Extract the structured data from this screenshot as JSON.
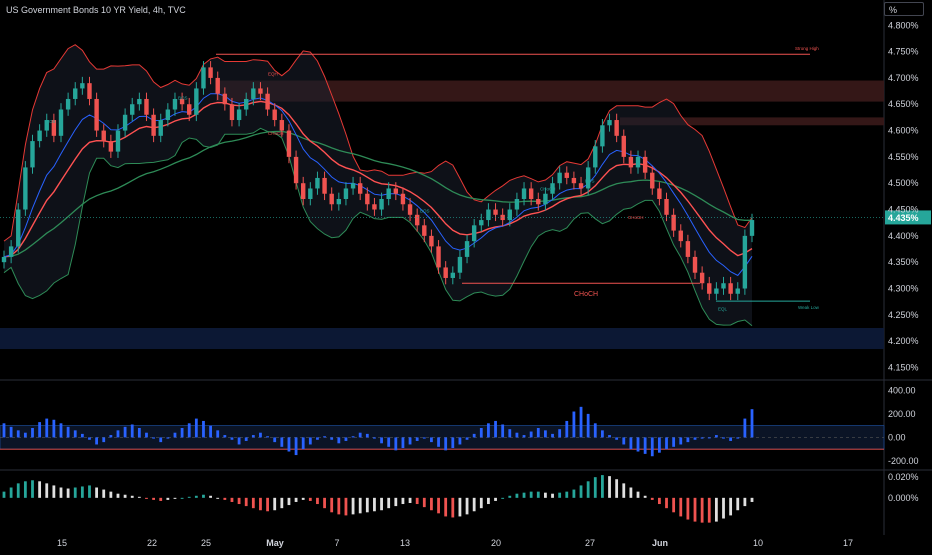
{
  "header": {
    "title": "US Government Bonds 10 YR Yield, 4h, TVC",
    "unit_button": "%"
  },
  "colors": {
    "background": "#000000",
    "up": "#26a69a",
    "down": "#ef5350",
    "band": "#e53935",
    "ema_fast": "#ff5252",
    "ema_mid": "#2962ff",
    "ema_slow": "#2e8b57",
    "demand_zone": "#0d1b3a",
    "supply_zone": "#3a1a1a",
    "hist_blue": "#2962ff",
    "hist_green": "#26a69a",
    "hist_red": "#ef5350",
    "hist_white": "#e0e0e0"
  },
  "annotations": {
    "strong_high": "Strong High",
    "weak_low": "Weak Low",
    "choch_main": "CHoCH",
    "eqh": "EQH",
    "eql": "EQL",
    "bos": "BOS",
    "choch": "CHoCH"
  },
  "chart_data": [
    {
      "type": "line",
      "title": "US Government Bonds 10 YR Yield, 4h, TVC",
      "ylabel": "%",
      "ylim": [
        4.13,
        4.81
      ],
      "y_ticks": [
        "4.800%",
        "4.750%",
        "4.700%",
        "4.650%",
        "4.600%",
        "4.550%",
        "4.500%",
        "4.450%",
        "4.400%",
        "4.350%",
        "4.300%",
        "4.250%",
        "4.200%",
        "4.150%"
      ],
      "y_tick_values": [
        4.8,
        4.75,
        4.7,
        4.65,
        4.6,
        4.55,
        4.5,
        4.45,
        4.4,
        4.35,
        4.3,
        4.25,
        4.2,
        4.15
      ],
      "last_price_label": "4.435%",
      "last_price": 4.435,
      "x_ticks": [
        "15",
        "22",
        "25",
        "May",
        "7",
        "13",
        "20",
        "27",
        "Jun",
        "10",
        "17"
      ],
      "series": [
        {
          "values": [
            4.36,
            4.38,
            4.45,
            4.53,
            4.58,
            4.6,
            4.62,
            4.59,
            4.64,
            4.66,
            4.68,
            4.69,
            4.66,
            4.6,
            4.58,
            4.56,
            4.6,
            4.63,
            4.65,
            4.66,
            4.63,
            4.59,
            4.62,
            4.64,
            4.66,
            4.65,
            4.63,
            4.68,
            4.72,
            4.7,
            4.67,
            4.65,
            4.62,
            4.64,
            4.66,
            4.68,
            4.67,
            4.64,
            4.62,
            4.6,
            4.55,
            4.5,
            4.47,
            4.49,
            4.51,
            4.48,
            4.46,
            4.47,
            4.49,
            4.5,
            4.48,
            4.46,
            4.45,
            4.47,
            4.49,
            4.48,
            4.46,
            4.44,
            4.42,
            4.4,
            4.38,
            4.34,
            4.32,
            4.33,
            4.36,
            4.39,
            4.42,
            4.43,
            4.45,
            4.44,
            4.43,
            4.45,
            4.47,
            4.49,
            4.47,
            4.46,
            4.48,
            4.5,
            4.52,
            4.51,
            4.5,
            4.49,
            4.53,
            4.57,
            4.61,
            4.62,
            4.59,
            4.55,
            4.53,
            4.55,
            4.52,
            4.49,
            4.47,
            4.44,
            4.41,
            4.39,
            4.36,
            4.33,
            4.31,
            4.29,
            4.3,
            4.31,
            4.29,
            4.3,
            4.4,
            4.43
          ]
        }
      ]
    },
    {
      "type": "bar",
      "title": "",
      "y_ticks": [
        "400.00",
        "200.00",
        "0.00",
        "-200.00"
      ],
      "y_tick_values": [
        400,
        200,
        0,
        -200
      ],
      "ylim": [
        -260,
        420
      ],
      "series": [
        {
          "values": [
            120,
            90,
            60,
            40,
            80,
            130,
            160,
            150,
            120,
            90,
            60,
            30,
            -20,
            -60,
            -40,
            20,
            60,
            90,
            110,
            80,
            40,
            -10,
            -40,
            -10,
            40,
            80,
            120,
            160,
            140,
            100,
            60,
            20,
            -20,
            -60,
            -30,
            20,
            40,
            10,
            -40,
            -80,
            -120,
            -150,
            -100,
            -60,
            -20,
            10,
            -20,
            -50,
            -30,
            10,
            40,
            30,
            -10,
            -50,
            -80,
            -110,
            -90,
            -60,
            -30,
            -10,
            -40,
            -80,
            -110,
            -90,
            -60,
            -20,
            30,
            80,
            120,
            140,
            110,
            70,
            40,
            20,
            50,
            80,
            60,
            30,
            70,
            140,
            220,
            260,
            200,
            120,
            60,
            20,
            -20,
            -60,
            -100,
            -120,
            -140,
            -160,
            -130,
            -100,
            -80,
            -60,
            -40,
            -20,
            -10,
            0,
            20,
            -10,
            -30,
            -10,
            160,
            240
          ]
        }
      ]
    },
    {
      "type": "bar",
      "title": "",
      "y_ticks": [
        "0.020%",
        "0.000%"
      ],
      "y_tick_values": [
        0.02,
        0.0
      ],
      "ylim": [
        -0.035,
        0.025
      ],
      "series": [
        {
          "values": [
            0.006,
            0.01,
            0.014,
            0.016,
            0.017,
            0.016,
            0.014,
            0.012,
            0.01,
            0.009,
            0.01,
            0.011,
            0.012,
            0.01,
            0.008,
            0.006,
            0.004,
            0.003,
            0.002,
            0.001,
            -0.001,
            -0.002,
            -0.003,
            -0.002,
            -0.001,
            0.0,
            0.001,
            0.002,
            0.003,
            0.002,
            0.0,
            -0.002,
            -0.004,
            -0.006,
            -0.008,
            -0.01,
            -0.012,
            -0.013,
            -0.012,
            -0.01,
            -0.007,
            -0.004,
            -0.002,
            -0.003,
            -0.006,
            -0.01,
            -0.014,
            -0.016,
            -0.017,
            -0.016,
            -0.015,
            -0.014,
            -0.013,
            -0.012,
            -0.01,
            -0.008,
            -0.006,
            -0.005,
            -0.006,
            -0.009,
            -0.012,
            -0.015,
            -0.018,
            -0.019,
            -0.018,
            -0.016,
            -0.013,
            -0.01,
            -0.006,
            -0.003,
            0.0,
            0.002,
            0.004,
            0.005,
            0.006,
            0.006,
            0.005,
            0.004,
            0.005,
            0.006,
            0.008,
            0.012,
            0.016,
            0.02,
            0.022,
            0.021,
            0.018,
            0.014,
            0.01,
            0.006,
            0.002,
            -0.002,
            -0.006,
            -0.01,
            -0.014,
            -0.018,
            -0.021,
            -0.023,
            -0.024,
            -0.024,
            -0.023,
            -0.02,
            -0.017,
            -0.012,
            -0.008,
            -0.004
          ]
        }
      ]
    }
  ]
}
